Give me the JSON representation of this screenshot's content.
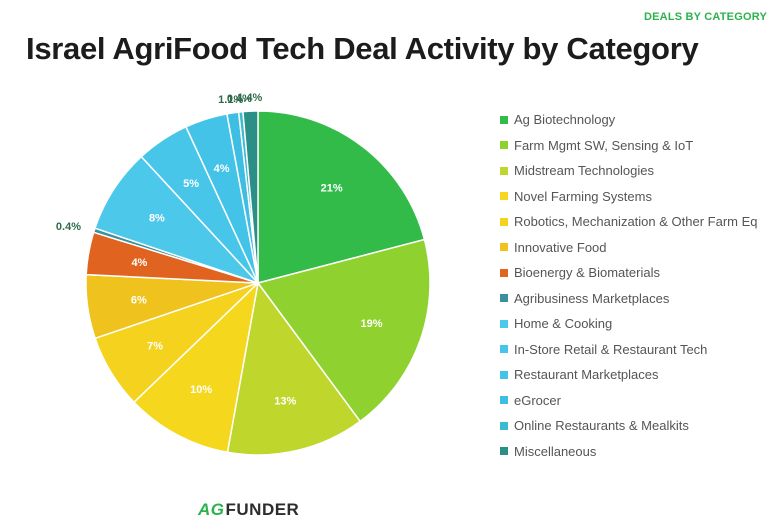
{
  "header": {
    "badge": "DEALS BY CATEGORY",
    "title": "Israel AgriFood Tech Deal Activity by Category"
  },
  "chart_data": {
    "type": "pie",
    "title": "Israel AgriFood Tech Deal Activity by Category",
    "legend_position": "right",
    "slices": [
      {
        "label": "Ag Biotechnology",
        "value": 21,
        "display": "21%",
        "color": "#33bb4a"
      },
      {
        "label": "Farm Mgmt SW, Sensing & IoT",
        "value": 19,
        "display": "19%",
        "color": "#8fd12e"
      },
      {
        "label": "Midstream Technologies",
        "value": 13,
        "display": "13%",
        "color": "#bfd62c"
      },
      {
        "label": "Novel Farming Systems",
        "value": 10,
        "display": "10%",
        "color": "#f5d81e"
      },
      {
        "label": "Robotics, Mechanization & Other Farm Eq",
        "value": 7,
        "display": "7%",
        "color": "#f5d21e"
      },
      {
        "label": "Innovative Food",
        "value": 6,
        "display": "6%",
        "color": "#f0c21e"
      },
      {
        "label": "Bioenergy & Biomaterials",
        "value": 4,
        "display": "4%",
        "color": "#e0631f"
      },
      {
        "label": "Agribusiness Marketplaces",
        "value": 0.4,
        "display": "0.4%",
        "color": "#3c8f9e"
      },
      {
        "label": "Home & Cooking",
        "value": 8,
        "display": "8%",
        "color": "#4cc8ea"
      },
      {
        "label": "In-Store Retail & Restaurant Tech",
        "value": 5,
        "display": "5%",
        "color": "#48c6ea"
      },
      {
        "label": "Restaurant Marketplaces",
        "value": 4,
        "display": "4%",
        "color": "#44c3e8"
      },
      {
        "label": "eGrocer",
        "value": 1.1,
        "display": "1.1%",
        "color": "#3fbee4"
      },
      {
        "label": "Online Restaurants & Mealkits",
        "value": 0.4,
        "display": "0.4%",
        "color": "#39bbd2"
      },
      {
        "label": "Miscellaneous",
        "value": 1.4,
        "display": "1.4%",
        "color": "#2b8f88"
      }
    ]
  },
  "legend": {
    "items": [
      {
        "label": "Ag Biotechnology",
        "color": "#33bb4a"
      },
      {
        "label": "Farm Mgmt SW, Sensing & IoT",
        "color": "#8fd12e"
      },
      {
        "label": "Midstream Technologies",
        "color": "#bfd62c"
      },
      {
        "label": "Novel Farming Systems",
        "color": "#f5d81e"
      },
      {
        "label": "Robotics, Mechanization & Other Farm Eq",
        "color": "#f5d21e"
      },
      {
        "label": "Innovative Food",
        "color": "#f0c21e"
      },
      {
        "label": "Bioenergy & Biomaterials",
        "color": "#e0631f"
      },
      {
        "label": "Agribusiness Marketplaces",
        "color": "#3c8f9e"
      },
      {
        "label": "Home & Cooking",
        "color": "#4cc8ea"
      },
      {
        "label": "In-Store Retail & Restaurant Tech",
        "color": "#48c6ea"
      },
      {
        "label": "Restaurant Marketplaces",
        "color": "#44c3e8"
      },
      {
        "label": "eGrocer",
        "color": "#3fbee4"
      },
      {
        "label": "Online Restaurants & Mealkits",
        "color": "#39bbd2"
      },
      {
        "label": "Miscellaneous",
        "color": "#2b8f88"
      }
    ]
  },
  "logo": {
    "mark": "AG",
    "text": "FUNDER"
  }
}
